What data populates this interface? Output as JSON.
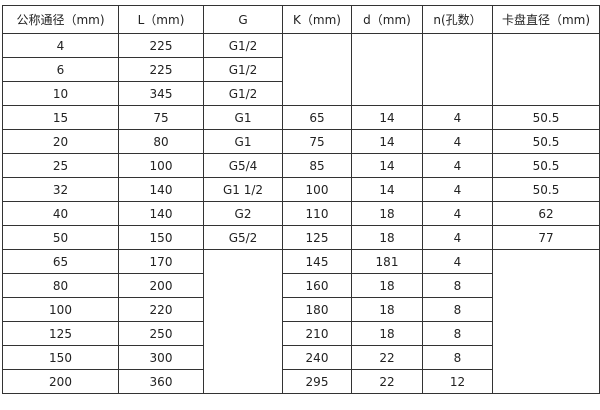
{
  "headers": [
    "公称通径（mm)",
    "L（mm)",
    "G",
    "K（mm)",
    "d（mm)",
    "n(孔数）",
    "卡盘直径（mm)"
  ],
  "rows": [
    [
      "4",
      "225",
      "G1/2",
      "",
      "",
      "",
      ""
    ],
    [
      "6",
      "225",
      "G1/2",
      "",
      "",
      "",
      ""
    ],
    [
      "10",
      "345",
      "G1/2",
      "",
      "",
      "",
      ""
    ],
    [
      "15",
      "75",
      "G1",
      "65",
      "14",
      "4",
      "50.5"
    ],
    [
      "20",
      "80",
      "G1",
      "75",
      "14",
      "4",
      "50.5"
    ],
    [
      "25",
      "100",
      "G5/4",
      "85",
      "14",
      "4",
      "50.5"
    ],
    [
      "32",
      "140",
      "G1 1/2",
      "100",
      "14",
      "4",
      "50.5"
    ],
    [
      "40",
      "140",
      "G2",
      "110",
      "18",
      "4",
      "62"
    ],
    [
      "50",
      "150",
      "G5/2",
      "125",
      "18",
      "4",
      "77"
    ],
    [
      "65",
      "170",
      "",
      "145",
      "181",
      "4",
      ""
    ],
    [
      "80",
      "200",
      "",
      "160",
      "18",
      "8",
      ""
    ],
    [
      "100",
      "220",
      "",
      "180",
      "18",
      "8",
      ""
    ],
    [
      "125",
      "250",
      "",
      "210",
      "18",
      "8",
      ""
    ],
    [
      "150",
      "300",
      "",
      "240",
      "22",
      "8",
      ""
    ],
    [
      "200",
      "360",
      "",
      "295",
      "22",
      "12",
      ""
    ]
  ]
}
